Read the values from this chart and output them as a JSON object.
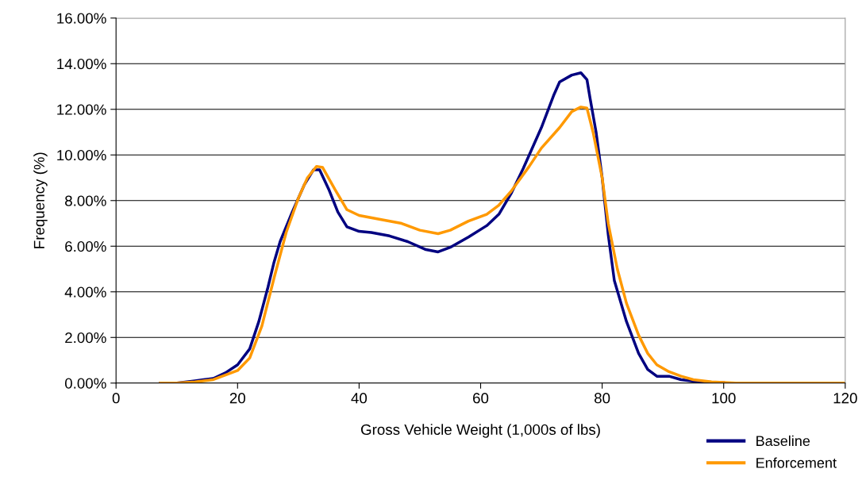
{
  "chart_data": {
    "type": "line",
    "xlabel": "Gross Vehicle Weight (1,000s of lbs)",
    "ylabel": "Frequency (%)",
    "xlim": [
      0,
      120
    ],
    "xticks": [
      0,
      20,
      40,
      60,
      80,
      100,
      120
    ],
    "ylim": [
      0,
      16
    ],
    "yticks": [
      {
        "value": 0,
        "label": "0.00%"
      },
      {
        "value": 2,
        "label": "2.00%"
      },
      {
        "value": 4,
        "label": "4.00%"
      },
      {
        "value": 6,
        "label": "6.00%"
      },
      {
        "value": 8,
        "label": "8.00%"
      },
      {
        "value": 10,
        "label": "10.00%"
      },
      {
        "value": 12,
        "label": "12.00%"
      },
      {
        "value": 14,
        "label": "14.00%"
      },
      {
        "value": 16,
        "label": "16.00%"
      }
    ],
    "grid": "y",
    "legend": "bottom right",
    "marker": "none",
    "line_style": "solid",
    "series": [
      {
        "name": "Baseline",
        "color": "#000080",
        "x": [
          7.3,
          10,
          13,
          16,
          18,
          20,
          22,
          23.5,
          25,
          26,
          27,
          29,
          31,
          32.5,
          33.5,
          35,
          36.5,
          38,
          40,
          42,
          45,
          48,
          51,
          53,
          55,
          58,
          61,
          63,
          65,
          67,
          70,
          72,
          73,
          75,
          76.5,
          77.5,
          78,
          79,
          80,
          81,
          82,
          84,
          86,
          87.5,
          89,
          91,
          93,
          96,
          100
        ],
        "values": [
          0,
          0,
          0.1,
          0.2,
          0.45,
          0.8,
          1.5,
          2.7,
          4.2,
          5.3,
          6.2,
          7.5,
          8.7,
          9.35,
          9.35,
          8.5,
          7.5,
          6.85,
          6.65,
          6.6,
          6.45,
          6.2,
          5.85,
          5.75,
          5.95,
          6.4,
          6.9,
          7.4,
          8.3,
          9.4,
          11.2,
          12.6,
          13.2,
          13.5,
          13.6,
          13.3,
          12.5,
          11.0,
          9.0,
          6.5,
          4.5,
          2.7,
          1.3,
          0.6,
          0.3,
          0.3,
          0.15,
          0.05,
          0.02
        ]
      },
      {
        "name": "Enforcement",
        "color": "#ff9900",
        "x": [
          7.3,
          10,
          13,
          16,
          20,
          22,
          24,
          26,
          28,
          30,
          31.5,
          33,
          34,
          36,
          38,
          40,
          44,
          47,
          50,
          53,
          55,
          58,
          61,
          63,
          65,
          68,
          70,
          73,
          75,
          76.5,
          77.5,
          78.5,
          80,
          81,
          82.5,
          84,
          86,
          87.5,
          89,
          91,
          93,
          95,
          98,
          102,
          120
        ],
        "values": [
          0,
          0,
          0.05,
          0.15,
          0.55,
          1.1,
          2.5,
          4.6,
          6.6,
          8.1,
          9.0,
          9.5,
          9.45,
          8.5,
          7.6,
          7.35,
          7.15,
          7.0,
          6.7,
          6.55,
          6.7,
          7.1,
          7.4,
          7.8,
          8.4,
          9.5,
          10.3,
          11.2,
          11.9,
          12.1,
          12.05,
          11.0,
          9.0,
          7.0,
          5.0,
          3.5,
          2.1,
          1.3,
          0.8,
          0.5,
          0.3,
          0.15,
          0.05,
          0,
          0
        ]
      }
    ]
  }
}
